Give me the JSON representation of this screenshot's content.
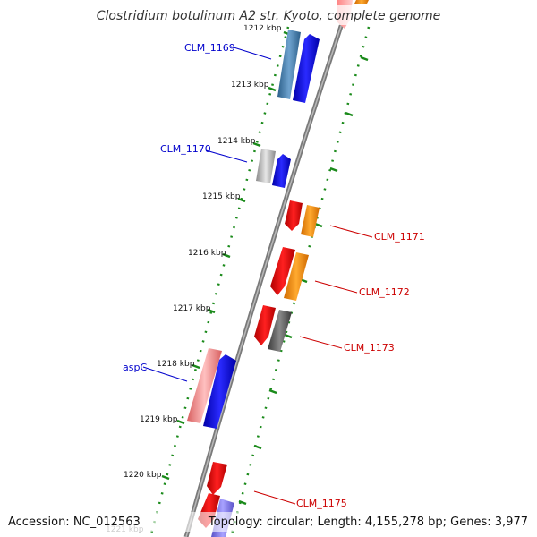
{
  "title": "Clostridium botulinum A2 str. Kyoto, complete genome",
  "footer": {
    "accession": "Accession: NC_012563",
    "topology": "Topology: circular; Length: 4,155,278 bp; Genes: 3,977"
  },
  "ticks": [
    "1212 kbp",
    "1213 kbp",
    "1214 kbp",
    "1215 kbp",
    "1216 kbp",
    "1217 kbp",
    "1218 kbp",
    "1219 kbp",
    "1220 kbp",
    "1221 kbp"
  ],
  "genes": {
    "clm1169": "CLM_1169",
    "clm1170": "CLM_1170",
    "clm1171": "CLM_1171",
    "clm1172": "CLM_1172",
    "clm1173": "CLM_1173",
    "aspc": "aspC",
    "clm1175": "CLM_1175"
  },
  "colors": {
    "forward_label": "#0000cc",
    "reverse_label": "#cc0000",
    "backbone": "#808080",
    "dotted_track": "#1a8a1a"
  }
}
